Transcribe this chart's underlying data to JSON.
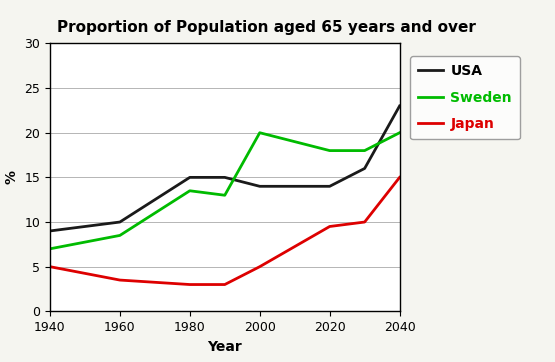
{
  "title": "Proportion of Population aged 65 years and over",
  "xlabel": "Year",
  "ylabel": "%",
  "xlim": [
    1940,
    2040
  ],
  "ylim": [
    0,
    30
  ],
  "xticks": [
    1940,
    1960,
    1980,
    2000,
    2020,
    2040
  ],
  "yticks": [
    0,
    5,
    10,
    15,
    20,
    25,
    30
  ],
  "background_color": "#f5f5f0",
  "plot_bg": "#ffffff",
  "series": [
    {
      "label": "USA",
      "color": "#1a1a1a",
      "linewidth": 2.0,
      "x": [
        1940,
        1960,
        1980,
        1990,
        2000,
        2020,
        2030,
        2040
      ],
      "y": [
        9,
        10,
        15,
        15,
        14,
        14,
        16,
        23
      ]
    },
    {
      "label": "Sweden",
      "color": "#00bb00",
      "linewidth": 2.0,
      "x": [
        1940,
        1960,
        1980,
        1990,
        2000,
        2020,
        2030,
        2040
      ],
      "y": [
        7,
        8.5,
        13.5,
        13,
        20,
        18,
        18,
        20
      ]
    },
    {
      "label": "Japan",
      "color": "#dd0000",
      "linewidth": 2.0,
      "x": [
        1940,
        1960,
        1980,
        1990,
        2000,
        2020,
        2030,
        2040
      ],
      "y": [
        5,
        3.5,
        3,
        3,
        5,
        9.5,
        10,
        15
      ]
    }
  ],
  "legend_colors": [
    "#1a1a1a",
    "#00bb00",
    "#dd0000"
  ],
  "legend_labels": [
    "USA",
    "Sweden",
    "Japan"
  ],
  "legend_label_colors": [
    "#000000",
    "#00bb00",
    "#dd0000"
  ],
  "title_fontsize": 11,
  "axis_label_fontsize": 10,
  "tick_fontsize": 9,
  "legend_fontsize": 10,
  "figsize": [
    5.55,
    3.62
  ],
  "dpi": 100
}
